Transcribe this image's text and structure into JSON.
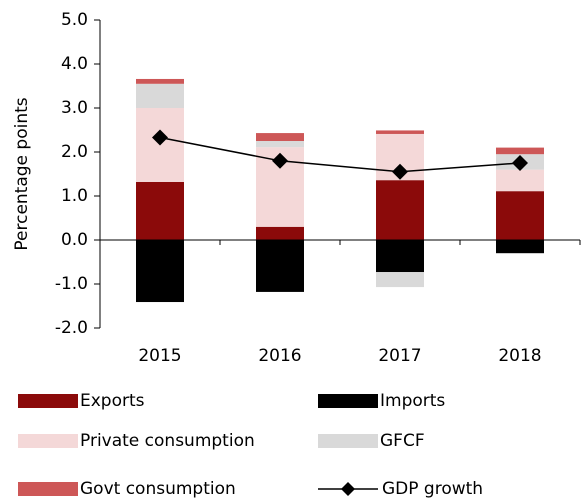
{
  "chart_data": {
    "type": "stacked-bar-line",
    "y_label": "Percentage points",
    "categories": [
      "2015",
      "2016",
      "2017",
      "2018"
    ],
    "series": [
      {
        "name": "Exports",
        "color": "#8b0a0a",
        "values": [
          1.32,
          0.3,
          1.36,
          1.11
        ]
      },
      {
        "name": "Imports",
        "color": "#000000",
        "values": [
          -1.41,
          -1.18,
          -0.73,
          -0.3
        ]
      },
      {
        "name": "Private consumption",
        "color": "#f4d8d8",
        "values": [
          1.68,
          1.81,
          1.05,
          0.49
        ]
      },
      {
        "name": "GFCF",
        "color": "#d9d9d9",
        "values": [
          0.55,
          0.14,
          -0.34,
          0.35
        ]
      },
      {
        "name": "Govt consumption",
        "color": "#cd5757",
        "values": [
          0.11,
          0.18,
          0.08,
          0.15
        ]
      }
    ],
    "line": {
      "name": "GDP growth",
      "color": "#000000",
      "values": [
        2.33,
        1.8,
        1.55,
        1.75
      ]
    },
    "ylim": [
      -2,
      5
    ],
    "yticks": [
      {
        "value": -2,
        "label": "-2.0"
      },
      {
        "value": -1,
        "label": "-1.0"
      },
      {
        "value": 0,
        "label": "0.0"
      },
      {
        "value": 1,
        "label": "1.0"
      },
      {
        "value": 2,
        "label": "2.0"
      },
      {
        "value": 3,
        "label": "3.0"
      },
      {
        "value": 4,
        "label": "4.0"
      },
      {
        "value": 5,
        "label": "5.0"
      }
    ]
  }
}
